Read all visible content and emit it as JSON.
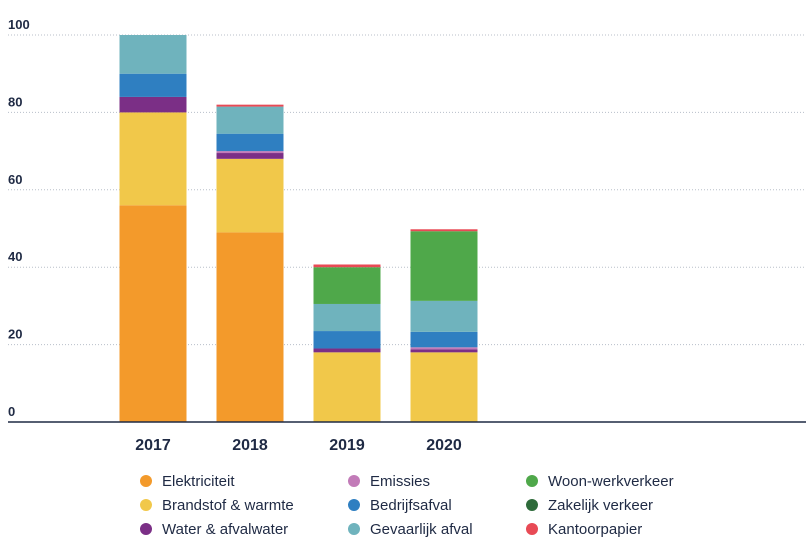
{
  "chart_data": {
    "type": "bar",
    "stacked": true,
    "title": "",
    "xlabel": "",
    "ylabel": "",
    "ylim": [
      0,
      100
    ],
    "yticks": [
      0,
      20,
      40,
      60,
      80,
      100
    ],
    "grid": true,
    "legend_position": "bottom",
    "categories": [
      "2017",
      "2018",
      "2019",
      "2020"
    ],
    "series": [
      {
        "name": "Elektriciteit",
        "color": "#f39a2b",
        "values": [
          56,
          49,
          0,
          0
        ]
      },
      {
        "name": "Brandstof & warmte",
        "color": "#f1c84a",
        "values": [
          24,
          19,
          18,
          18
        ]
      },
      {
        "name": "Water & afvalwater",
        "color": "#7b2f86",
        "values": [
          4,
          1.5,
          1,
          0.8
        ]
      },
      {
        "name": "Emissies",
        "color": "#c27bb8",
        "values": [
          0,
          0.5,
          0,
          0.5
        ]
      },
      {
        "name": "Bedrijfsafval",
        "color": "#2f7fc1",
        "values": [
          6,
          4.5,
          4.5,
          4
        ]
      },
      {
        "name": "Gevaarlijk afval",
        "color": "#6fb3bd",
        "values": [
          10,
          7,
          7,
          8
        ]
      },
      {
        "name": "Woon-werkverkeer",
        "color": "#4fa84a",
        "values": [
          0,
          0,
          9.5,
          18
        ]
      },
      {
        "name": "Zakelijk verkeer",
        "color": "#2e6b3a",
        "values": [
          0,
          0,
          0,
          0
        ]
      },
      {
        "name": "Kantoorpapier",
        "color": "#e84a55",
        "values": [
          0,
          0.5,
          0.7,
          0.5
        ]
      }
    ]
  }
}
